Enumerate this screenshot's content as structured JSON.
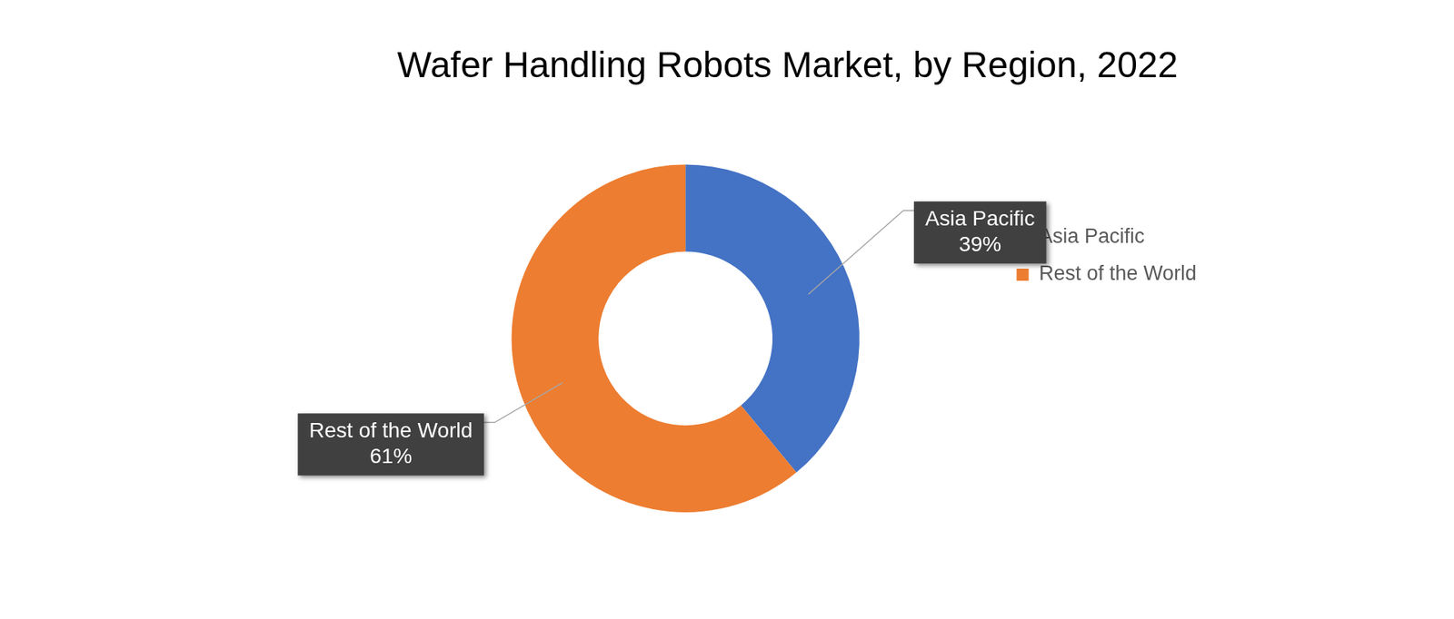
{
  "chart_data": {
    "type": "doughnut",
    "title": "Wafer Handling Robots Market, by Region, 2022",
    "categories": [
      "Asia Pacific",
      "Rest of the World"
    ],
    "values": [
      39,
      61
    ],
    "value_labels": [
      "39%",
      "61%"
    ],
    "colors": [
      "#4472c4",
      "#ed7d31"
    ],
    "legend": "right",
    "data_labels": true
  }
}
